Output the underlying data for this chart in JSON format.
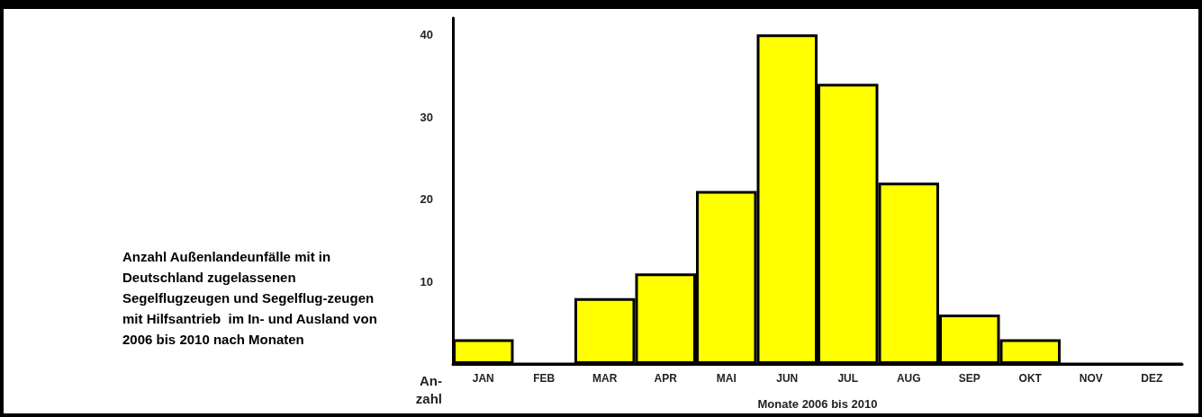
{
  "chart_data": {
    "type": "bar",
    "title": "Anzahl Außenlandeunfälle mit in Deutschland zugelassenen Segelflugzeugen und Segelflug-zeugen mit Hilfsantrieb  im In- und Ausland von 2006 bis 2010 nach Monaten",
    "xlabel": "Monate 2006 bis 2010",
    "ylabel": "An-\nzahl",
    "categories": [
      "JAN",
      "FEB",
      "MAR",
      "APR",
      "MAI",
      "JUN",
      "JUL",
      "AUG",
      "SEP",
      "OKT",
      "NOV",
      "DEZ"
    ],
    "values": [
      3,
      0,
      8,
      11,
      21,
      40,
      34,
      22,
      6,
      3,
      0,
      0
    ],
    "color": "#ffff00",
    "ylim": [
      0,
      42
    ],
    "yticks": [
      10,
      20,
      30,
      40
    ],
    "grid": false
  }
}
